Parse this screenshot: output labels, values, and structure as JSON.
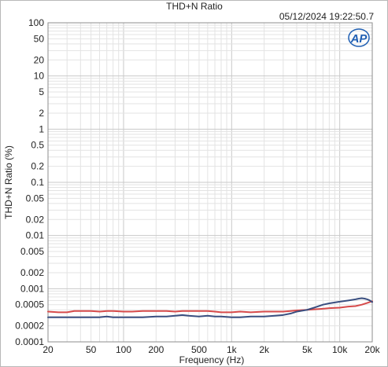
{
  "chart_data": {
    "type": "line",
    "title": "THD+N Ratio",
    "timestamp": "05/12/2024 19:22:50.7",
    "xlabel": "Frequency (Hz)",
    "ylabel": "THD+N Ratio (%)",
    "x_scale": "log",
    "y_scale": "log",
    "xlim": [
      20,
      20000
    ],
    "ylim": [
      0.0001,
      100
    ],
    "grid": true,
    "logo_text": "AP",
    "x_ticks": [
      {
        "value": 20,
        "label": "20"
      },
      {
        "value": 50,
        "label": "50"
      },
      {
        "value": 100,
        "label": "100"
      },
      {
        "value": 200,
        "label": "200"
      },
      {
        "value": 500,
        "label": "500"
      },
      {
        "value": 1000,
        "label": "1k"
      },
      {
        "value": 2000,
        "label": "2k"
      },
      {
        "value": 5000,
        "label": "5k"
      },
      {
        "value": 10000,
        "label": "10k"
      },
      {
        "value": 20000,
        "label": "20k"
      }
    ],
    "y_ticks": [
      {
        "value": 100,
        "label": "100"
      },
      {
        "value": 50,
        "label": "50"
      },
      {
        "value": 20,
        "label": "20"
      },
      {
        "value": 10,
        "label": "10"
      },
      {
        "value": 5,
        "label": "5"
      },
      {
        "value": 2,
        "label": "2"
      },
      {
        "value": 1,
        "label": "1"
      },
      {
        "value": 0.5,
        "label": "0.5"
      },
      {
        "value": 0.2,
        "label": "0.2"
      },
      {
        "value": 0.1,
        "label": "0.1"
      },
      {
        "value": 0.05,
        "label": "0.05"
      },
      {
        "value": 0.02,
        "label": "0.02"
      },
      {
        "value": 0.01,
        "label": "0.01"
      },
      {
        "value": 0.005,
        "label": "0.005"
      },
      {
        "value": 0.002,
        "label": "0.002"
      },
      {
        "value": 0.001,
        "label": "0.001"
      },
      {
        "value": 0.0005,
        "label": "0.0005"
      },
      {
        "value": 0.0002,
        "label": "0.0002"
      },
      {
        "value": 0.0001,
        "label": "0.0001"
      }
    ],
    "series": [
      {
        "color": "#d64a4a",
        "points": [
          [
            20,
            0.00037
          ],
          [
            25,
            0.00036
          ],
          [
            30,
            0.00036
          ],
          [
            35,
            0.00038
          ],
          [
            40,
            0.00038
          ],
          [
            50,
            0.00038
          ],
          [
            60,
            0.00037
          ],
          [
            70,
            0.00038
          ],
          [
            80,
            0.00038
          ],
          [
            100,
            0.00037
          ],
          [
            120,
            0.00037
          ],
          [
            150,
            0.00038
          ],
          [
            200,
            0.00038
          ],
          [
            250,
            0.00038
          ],
          [
            300,
            0.00037
          ],
          [
            350,
            0.00038
          ],
          [
            400,
            0.00038
          ],
          [
            500,
            0.00038
          ],
          [
            600,
            0.00038
          ],
          [
            700,
            0.00037
          ],
          [
            800,
            0.00036
          ],
          [
            1000,
            0.00036
          ],
          [
            1200,
            0.00037
          ],
          [
            1500,
            0.00036
          ],
          [
            2000,
            0.00037
          ],
          [
            2500,
            0.00037
          ],
          [
            3000,
            0.00037
          ],
          [
            3500,
            0.00038
          ],
          [
            4000,
            0.00039
          ],
          [
            5000,
            0.0004
          ],
          [
            6000,
            0.00041
          ],
          [
            7000,
            0.00042
          ],
          [
            8000,
            0.00043
          ],
          [
            10000,
            0.00044
          ],
          [
            12000,
            0.00046
          ],
          [
            14000,
            0.00047
          ],
          [
            16000,
            0.0005
          ],
          [
            18000,
            0.00054
          ],
          [
            20000,
            0.00058
          ]
        ]
      },
      {
        "color": "#3a4f80",
        "points": [
          [
            20,
            0.00029
          ],
          [
            25,
            0.00029
          ],
          [
            30,
            0.00029
          ],
          [
            40,
            0.00029
          ],
          [
            50,
            0.00029
          ],
          [
            60,
            0.00029
          ],
          [
            70,
            0.0003
          ],
          [
            80,
            0.00029
          ],
          [
            100,
            0.00029
          ],
          [
            120,
            0.00029
          ],
          [
            150,
            0.00029
          ],
          [
            200,
            0.0003
          ],
          [
            250,
            0.0003
          ],
          [
            300,
            0.00031
          ],
          [
            350,
            0.00032
          ],
          [
            400,
            0.00031
          ],
          [
            500,
            0.0003
          ],
          [
            600,
            0.00031
          ],
          [
            700,
            0.0003
          ],
          [
            800,
            0.0003
          ],
          [
            1000,
            0.00029
          ],
          [
            1200,
            0.00029
          ],
          [
            1500,
            0.0003
          ],
          [
            2000,
            0.0003
          ],
          [
            2500,
            0.00031
          ],
          [
            3000,
            0.00032
          ],
          [
            3500,
            0.00034
          ],
          [
            4000,
            0.00037
          ],
          [
            5000,
            0.0004
          ],
          [
            6000,
            0.00045
          ],
          [
            7000,
            0.0005
          ],
          [
            8000,
            0.00053
          ],
          [
            10000,
            0.00057
          ],
          [
            12000,
            0.0006
          ],
          [
            14000,
            0.00063
          ],
          [
            15000,
            0.00065
          ],
          [
            16000,
            0.00066
          ],
          [
            17000,
            0.00065
          ],
          [
            18000,
            0.00063
          ],
          [
            19000,
            0.0006
          ],
          [
            20000,
            0.00056
          ]
        ]
      }
    ]
  }
}
